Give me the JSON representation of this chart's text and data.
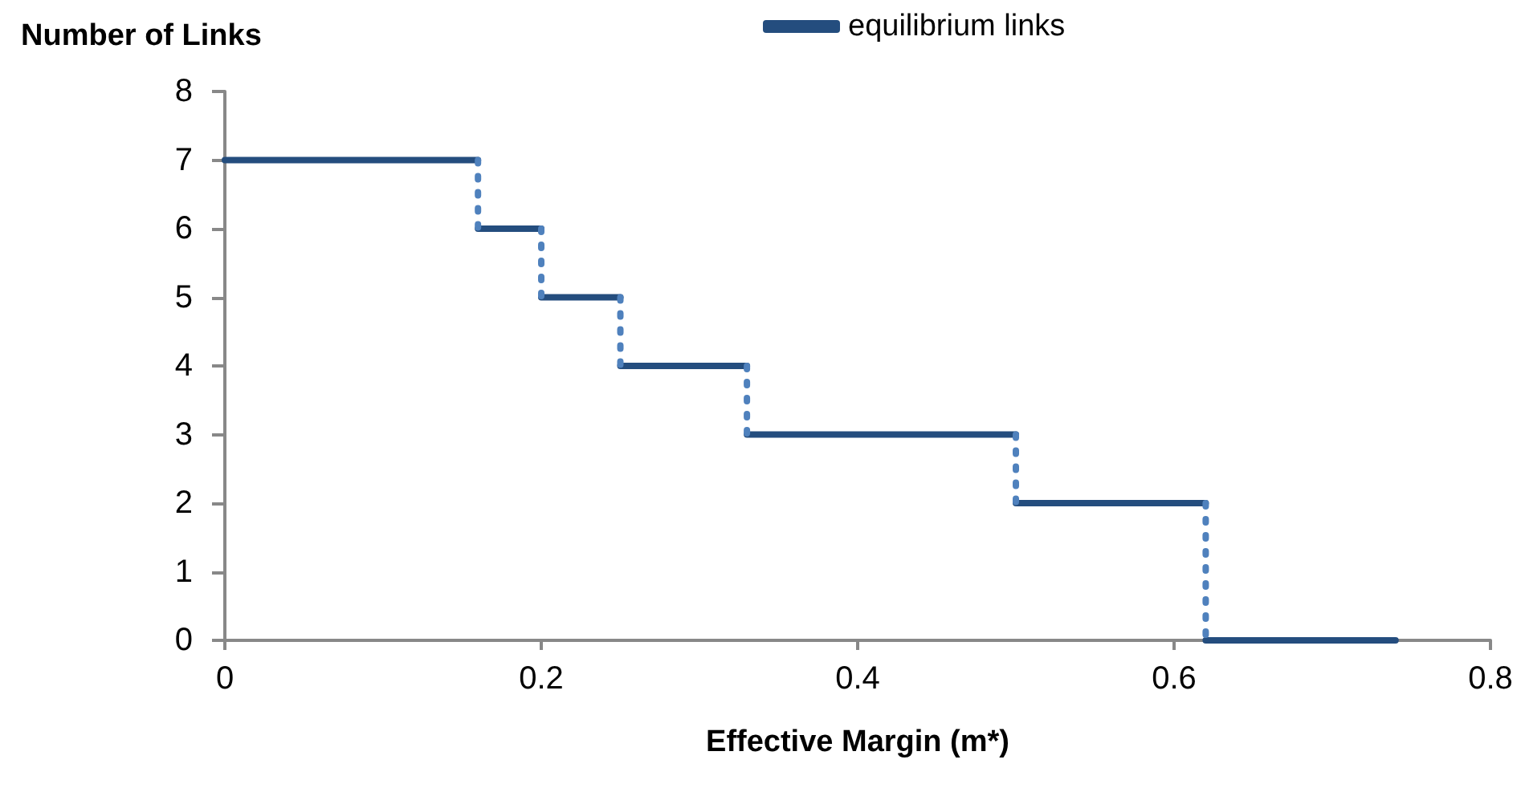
{
  "chart_data": {
    "type": "line",
    "xlabel": "Effective Margin (m*)",
    "ylabel": "Number of Links",
    "xlim": [
      0,
      0.8
    ],
    "xticks": [
      0,
      0.2,
      0.4,
      0.6,
      0.8
    ],
    "ylim": [
      0,
      8
    ],
    "yticks": [
      0,
      1,
      2,
      3,
      4,
      5,
      6,
      7,
      8
    ],
    "grid": false,
    "legend": "top",
    "marker": "none",
    "series": [
      {
        "name": "equilibrium links",
        "color": "#244d7e",
        "line_style": "solid",
        "x": [
          0,
          0.16
        ],
        "values": [
          7,
          7
        ]
      },
      {
        "color": "#244d7e",
        "line_style": "solid",
        "x": [
          0.16,
          0.2
        ],
        "values": [
          6,
          6
        ]
      },
      {
        "color": "#244d7e",
        "line_style": "solid",
        "x": [
          0.2,
          0.25
        ],
        "values": [
          5,
          5
        ]
      },
      {
        "color": "#244d7e",
        "line_style": "solid",
        "x": [
          0.25,
          0.33
        ],
        "values": [
          4,
          4
        ]
      },
      {
        "color": "#244d7e",
        "line_style": "solid",
        "x": [
          0.33,
          0.5
        ],
        "values": [
          3,
          3
        ]
      },
      {
        "color": "#244d7e",
        "line_style": "solid",
        "x": [
          0.5,
          0.62
        ],
        "values": [
          2,
          2
        ]
      },
      {
        "color": "#244d7e",
        "line_style": "solid",
        "x": [
          0.62,
          0.74
        ],
        "values": [
          0,
          0
        ]
      },
      {
        "color": "#4f81bd",
        "line_style": "dotted",
        "x": [
          0.16,
          0.16
        ],
        "values": [
          7,
          6
        ]
      },
      {
        "color": "#4f81bd",
        "line_style": "dotted",
        "x": [
          0.2,
          0.2
        ],
        "values": [
          6,
          5
        ]
      },
      {
        "color": "#4f81bd",
        "line_style": "dotted",
        "x": [
          0.25,
          0.25
        ],
        "values": [
          5,
          4
        ]
      },
      {
        "color": "#4f81bd",
        "line_style": "dotted",
        "x": [
          0.33,
          0.33
        ],
        "values": [
          4,
          3
        ]
      },
      {
        "color": "#4f81bd",
        "line_style": "dotted",
        "x": [
          0.5,
          0.5
        ],
        "values": [
          3,
          2
        ]
      },
      {
        "color": "#4f81bd",
        "line_style": "dotted",
        "x": [
          0.62,
          0.62
        ],
        "values": [
          2,
          0
        ]
      }
    ]
  }
}
